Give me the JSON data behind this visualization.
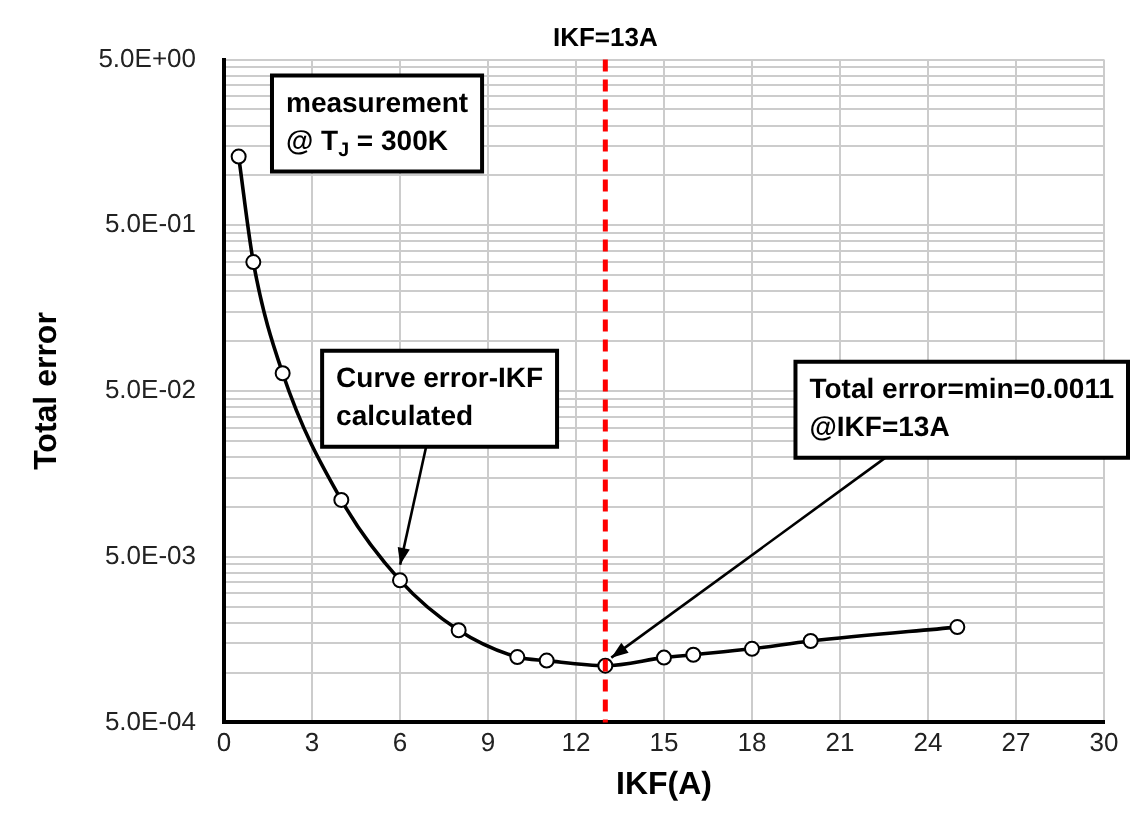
{
  "chart_data": {
    "type": "line",
    "xlabel": "IKF(A)",
    "ylabel": "Total error",
    "x": [
      0.5,
      1,
      2,
      4,
      6,
      8,
      10,
      11,
      13,
      15,
      16,
      18,
      20,
      25
    ],
    "series": [
      {
        "color": "#000000",
        "values": [
          1.3,
          0.3,
          0.064,
          0.011,
          0.0036,
          0.0018,
          0.00124,
          0.00118,
          0.0011,
          0.00123,
          0.00128,
          0.00139,
          0.00155,
          0.00188
        ]
      }
    ],
    "xlim": [
      0,
      30
    ],
    "xticks": [
      0,
      3,
      6,
      9,
      12,
      15,
      18,
      21,
      24,
      27,
      30
    ],
    "ylim": [
      0.0005,
      5
    ],
    "yticks": [
      {
        "value": 0.0005,
        "label": "5.0E-04"
      },
      {
        "value": 0.001,
        "label": null
      },
      {
        "value": 0.0015,
        "label": null
      },
      {
        "value": 0.002,
        "label": null
      },
      {
        "value": 0.0025,
        "label": null
      },
      {
        "value": 0.003,
        "label": null
      },
      {
        "value": 0.0035,
        "label": null
      },
      {
        "value": 0.004,
        "label": null
      },
      {
        "value": 0.0045,
        "label": null
      },
      {
        "value": 0.005,
        "label": "5.0E-03"
      },
      {
        "value": 0.01,
        "label": null
      },
      {
        "value": 0.015,
        "label": null
      },
      {
        "value": 0.02,
        "label": null
      },
      {
        "value": 0.025,
        "label": null
      },
      {
        "value": 0.03,
        "label": null
      },
      {
        "value": 0.035,
        "label": null
      },
      {
        "value": 0.04,
        "label": null
      },
      {
        "value": 0.045,
        "label": null
      },
      {
        "value": 0.05,
        "label": "5.0E-02"
      },
      {
        "value": 0.1,
        "label": null
      },
      {
        "value": 0.15,
        "label": null
      },
      {
        "value": 0.2,
        "label": null
      },
      {
        "value": 0.25,
        "label": null
      },
      {
        "value": 0.3,
        "label": null
      },
      {
        "value": 0.35,
        "label": null
      },
      {
        "value": 0.4,
        "label": null
      },
      {
        "value": 0.45,
        "label": null
      },
      {
        "value": 0.5,
        "label": "5.0E-01"
      },
      {
        "value": 1,
        "label": null
      },
      {
        "value": 1.5,
        "label": null
      },
      {
        "value": 2,
        "label": null
      },
      {
        "value": 2.5,
        "label": null
      },
      {
        "value": 3,
        "label": null
      },
      {
        "value": 3.5,
        "label": null
      },
      {
        "value": 4,
        "label": null
      },
      {
        "value": 4.5,
        "label": null
      },
      {
        "value": 5,
        "label": "5.0E+00"
      }
    ],
    "log": "y",
    "grid": true,
    "legend": false,
    "marker": "circle",
    "line_style": "solid",
    "ref_lines": [
      {
        "axis": "x",
        "value": 13,
        "label": "IKF=13A",
        "color": "#ff0000",
        "line_style": "dashed"
      }
    ],
    "annotations": [
      "measurement\n@ T$_{J}$ = 300K",
      {
        "text": "Curve error-IKF\ncalculated",
        "x": 5.8,
        "y": 0.004
      },
      {
        "text": "Total error=min=0.0011\n@IKF=13A",
        "x": 13,
        "y": 0.0011
      }
    ]
  }
}
